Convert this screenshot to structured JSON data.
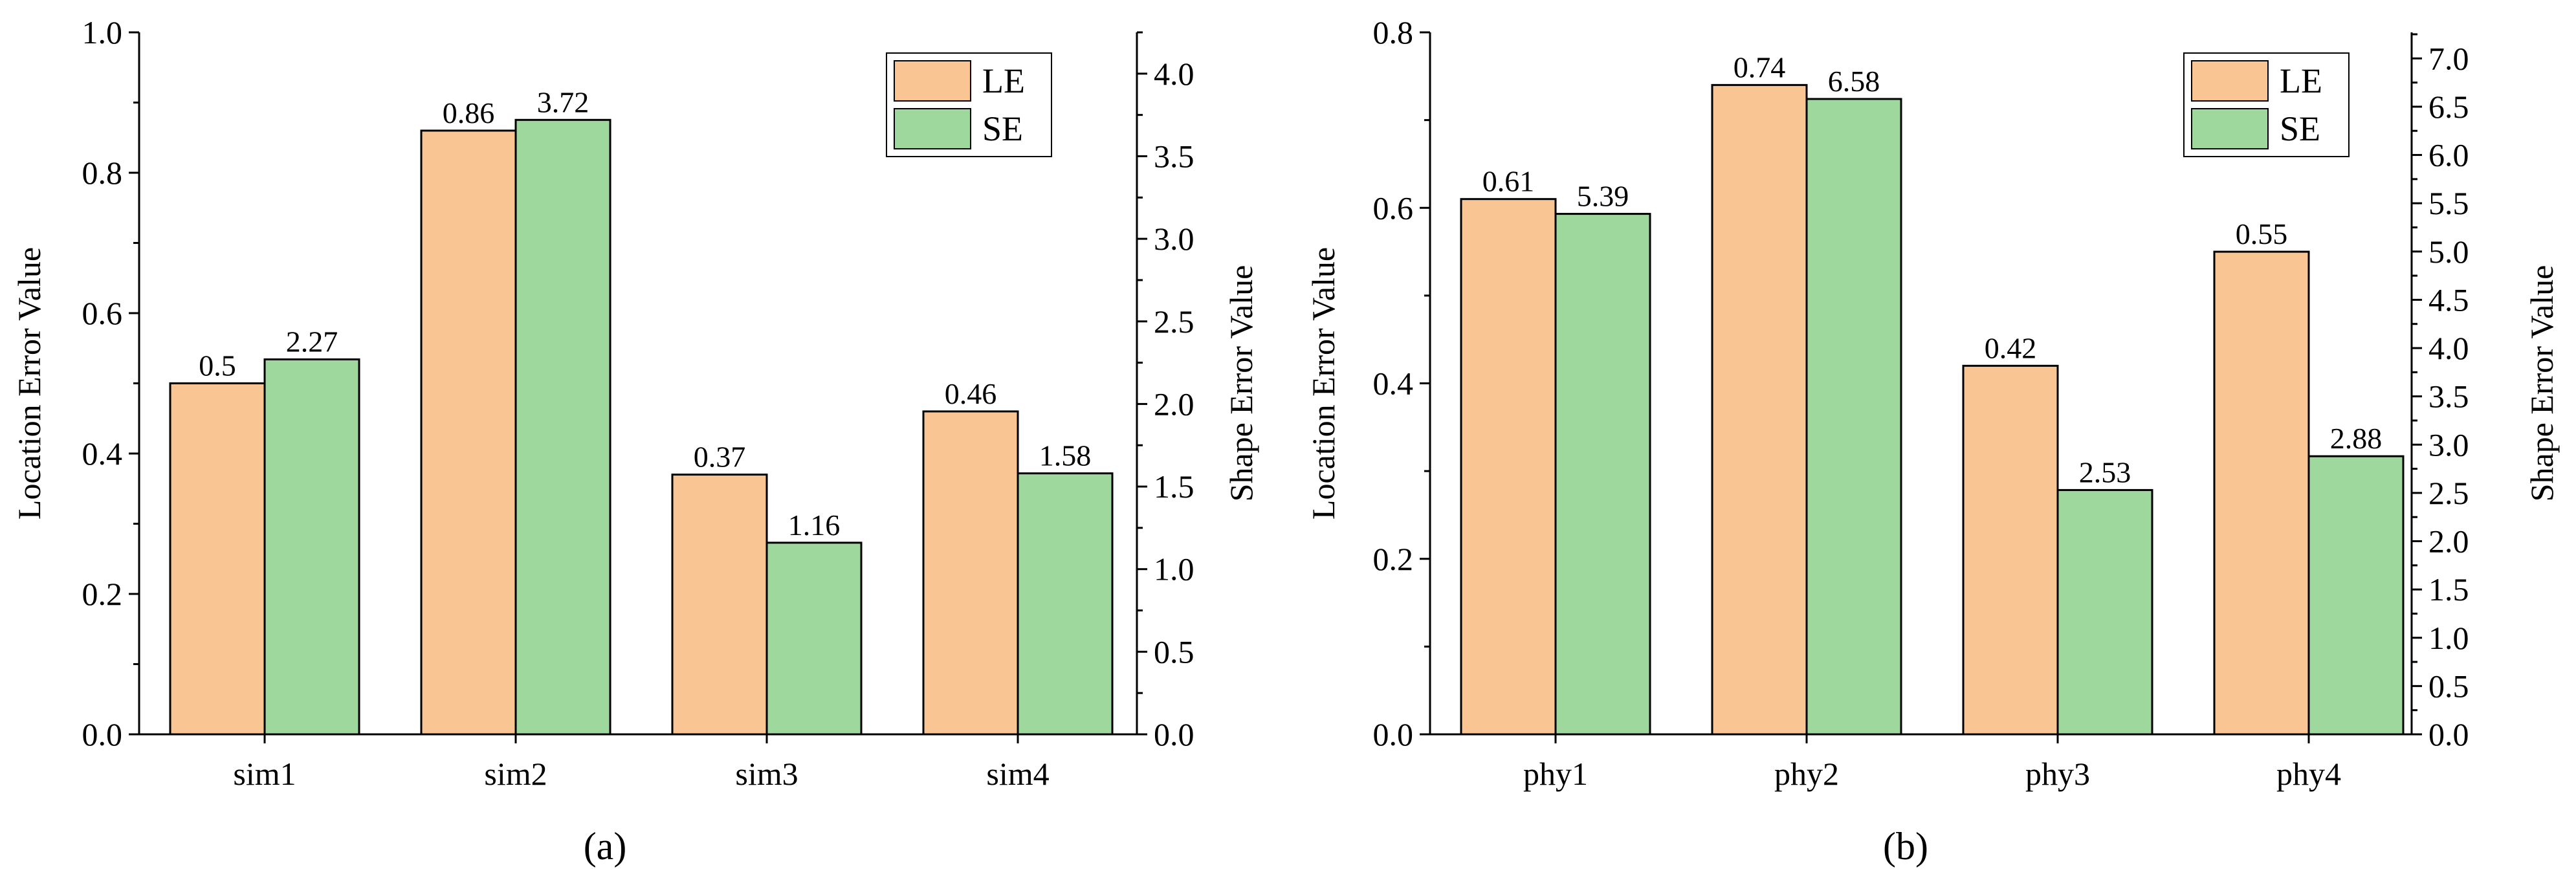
{
  "colors": {
    "le": "#f9c592",
    "se": "#9fd89c",
    "stroke": "#000000"
  },
  "legend": {
    "labels": [
      "LE",
      "SE"
    ]
  },
  "chart_data": [
    {
      "type": "bar",
      "caption": "(a)",
      "categories": [
        "sim1",
        "sim2",
        "sim3",
        "sim4"
      ],
      "series": [
        {
          "name": "LE",
          "axis": "left",
          "values": [
            0.5,
            0.86,
            0.37,
            0.46
          ],
          "labels": [
            "0.5",
            "0.86",
            "0.37",
            "0.46"
          ]
        },
        {
          "name": "SE",
          "axis": "right",
          "values": [
            2.27,
            3.72,
            1.16,
            1.58
          ],
          "labels": [
            "2.27",
            "3.72",
            "1.16",
            "1.58"
          ]
        }
      ],
      "ylabel_left": "Location Error Value",
      "ylabel_right": "Shape Error Value",
      "ylim_left": [
        0,
        1.0
      ],
      "ylim_right": [
        0,
        4.25
      ],
      "yticks_left": [
        "0.0",
        "0.2",
        "0.4",
        "0.6",
        "0.8",
        "1.0"
      ],
      "yticks_right": [
        "0.0",
        "0.5",
        "1.0",
        "1.5",
        "2.0",
        "2.5",
        "3.0",
        "3.5",
        "4.0"
      ],
      "legend_position": "top-right",
      "grid": false
    },
    {
      "type": "bar",
      "caption": "(b)",
      "categories": [
        "phy1",
        "phy2",
        "phy3",
        "phy4"
      ],
      "series": [
        {
          "name": "LE",
          "axis": "left",
          "values": [
            0.61,
            0.74,
            0.42,
            0.55
          ],
          "labels": [
            "0.61",
            "0.74",
            "0.42",
            "0.55"
          ]
        },
        {
          "name": "SE",
          "axis": "right",
          "values": [
            5.39,
            6.58,
            2.53,
            2.88
          ],
          "labels": [
            "5.39",
            "6.58",
            "2.53",
            "2.88"
          ]
        }
      ],
      "ylabel_left": "Location Error Value",
      "ylabel_right": "Shape Error Value",
      "ylim_left": [
        0,
        0.8
      ],
      "ylim_right": [
        0,
        7.27
      ],
      "yticks_left": [
        "0.0",
        "0.2",
        "0.4",
        "0.6",
        "0.8"
      ],
      "yticks_right": [
        "0.0",
        "0.5",
        "1.0",
        "1.5",
        "2.0",
        "2.5",
        "3.0",
        "3.5",
        "4.0",
        "4.5",
        "5.0",
        "5.5",
        "6.0",
        "6.5",
        "7.0"
      ],
      "legend_position": "top-right",
      "grid": false
    }
  ]
}
